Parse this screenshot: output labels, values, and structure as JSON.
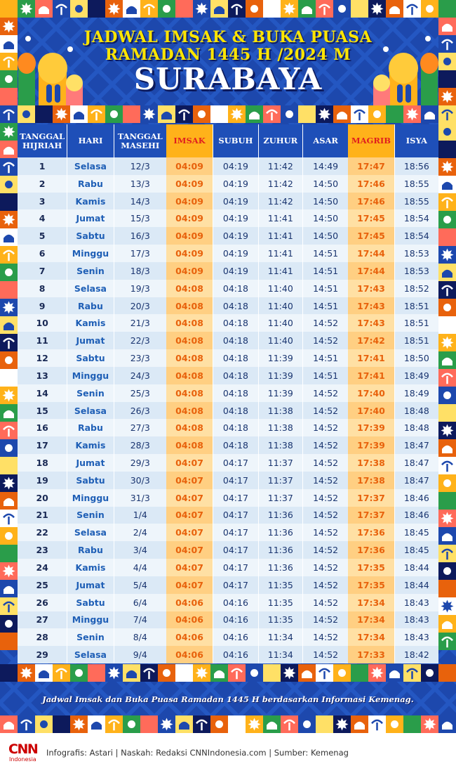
{
  "title": {
    "line1": "JADWAL IMSAK & BUKA PUASA",
    "line2": "RAMADAN 1445 H /2024 M",
    "city": "SURABAYA"
  },
  "columns": {
    "hijri": "TANGGAL HIJRIAH",
    "day": "HARI",
    "date": "TANGGAL MASEHI",
    "imsak": "IMSAK",
    "subuh": "SUBUH",
    "zuhur": "ZUHUR",
    "asar": "ASAR",
    "magrib": "MAGRIB",
    "isya": "ISYA"
  },
  "rows": [
    {
      "hijri": "1",
      "day": "Selasa",
      "date": "12/3",
      "imsak": "04:09",
      "subuh": "04:19",
      "zuhur": "11:42",
      "asar": "14:49",
      "magrib": "17:47",
      "isya": "18:56"
    },
    {
      "hijri": "2",
      "day": "Rabu",
      "date": "13/3",
      "imsak": "04:09",
      "subuh": "04:19",
      "zuhur": "11:42",
      "asar": "14:50",
      "magrib": "17:46",
      "isya": "18:55"
    },
    {
      "hijri": "3",
      "day": "Kamis",
      "date": "14/3",
      "imsak": "04:09",
      "subuh": "04:19",
      "zuhur": "11:42",
      "asar": "14:50",
      "magrib": "17:46",
      "isya": "18:55"
    },
    {
      "hijri": "4",
      "day": "Jumat",
      "date": "15/3",
      "imsak": "04:09",
      "subuh": "04:19",
      "zuhur": "11:41",
      "asar": "14:50",
      "magrib": "17:45",
      "isya": "18:54"
    },
    {
      "hijri": "5",
      "day": "Sabtu",
      "date": "16/3",
      "imsak": "04:09",
      "subuh": "04:19",
      "zuhur": "11:41",
      "asar": "14:50",
      "magrib": "17:45",
      "isya": "18:54"
    },
    {
      "hijri": "6",
      "day": "Minggu",
      "date": "17/3",
      "imsak": "04:09",
      "subuh": "04:19",
      "zuhur": "11:41",
      "asar": "14:51",
      "magrib": "17:44",
      "isya": "18:53"
    },
    {
      "hijri": "7",
      "day": "Senin",
      "date": "18/3",
      "imsak": "04:09",
      "subuh": "04:19",
      "zuhur": "11:41",
      "asar": "14:51",
      "magrib": "17:44",
      "isya": "18:53"
    },
    {
      "hijri": "8",
      "day": "Selasa",
      "date": "19/3",
      "imsak": "04:08",
      "subuh": "04:18",
      "zuhur": "11:40",
      "asar": "14:51",
      "magrib": "17:43",
      "isya": "18:52"
    },
    {
      "hijri": "9",
      "day": "Rabu",
      "date": "20/3",
      "imsak": "04:08",
      "subuh": "04:18",
      "zuhur": "11:40",
      "asar": "14:51",
      "magrib": "17:43",
      "isya": "18:51"
    },
    {
      "hijri": "10",
      "day": "Kamis",
      "date": "21/3",
      "imsak": "04:08",
      "subuh": "04:18",
      "zuhur": "11:40",
      "asar": "14:52",
      "magrib": "17:43",
      "isya": "18:51"
    },
    {
      "hijri": "11",
      "day": "Jumat",
      "date": "22/3",
      "imsak": "04:08",
      "subuh": "04:18",
      "zuhur": "11:40",
      "asar": "14:52",
      "magrib": "17:42",
      "isya": "18:51"
    },
    {
      "hijri": "12",
      "day": "Sabtu",
      "date": "23/3",
      "imsak": "04:08",
      "subuh": "04:18",
      "zuhur": "11:39",
      "asar": "14:51",
      "magrib": "17:41",
      "isya": "18:50"
    },
    {
      "hijri": "13",
      "day": "Minggu",
      "date": "24/3",
      "imsak": "04:08",
      "subuh": "04:18",
      "zuhur": "11:39",
      "asar": "14:51",
      "magrib": "17:41",
      "isya": "18:49"
    },
    {
      "hijri": "14",
      "day": "Senin",
      "date": "25/3",
      "imsak": "04:08",
      "subuh": "04:18",
      "zuhur": "11:39",
      "asar": "14:52",
      "magrib": "17:40",
      "isya": "18:49"
    },
    {
      "hijri": "15",
      "day": "Selasa",
      "date": "26/3",
      "imsak": "04:08",
      "subuh": "04:18",
      "zuhur": "11:38",
      "asar": "14:52",
      "magrib": "17:40",
      "isya": "18:48"
    },
    {
      "hijri": "16",
      "day": "Rabu",
      "date": "27/3",
      "imsak": "04:08",
      "subuh": "04:18",
      "zuhur": "11:38",
      "asar": "14:52",
      "magrib": "17:39",
      "isya": "18:48"
    },
    {
      "hijri": "17",
      "day": "Kamis",
      "date": "28/3",
      "imsak": "04:08",
      "subuh": "04:18",
      "zuhur": "11:38",
      "asar": "14:52",
      "magrib": "17:39",
      "isya": "18:47"
    },
    {
      "hijri": "18",
      "day": "Jumat",
      "date": "29/3",
      "imsak": "04:07",
      "subuh": "04:17",
      "zuhur": "11:37",
      "asar": "14:52",
      "magrib": "17:38",
      "isya": "18:47"
    },
    {
      "hijri": "19",
      "day": "Sabtu",
      "date": "30/3",
      "imsak": "04:07",
      "subuh": "04:17",
      "zuhur": "11:37",
      "asar": "14:52",
      "magrib": "17:38",
      "isya": "18:47"
    },
    {
      "hijri": "20",
      "day": "Minggu",
      "date": "31/3",
      "imsak": "04:07",
      "subuh": "04:17",
      "zuhur": "11:37",
      "asar": "14:52",
      "magrib": "17:37",
      "isya": "18:46"
    },
    {
      "hijri": "21",
      "day": "Senin",
      "date": "1/4",
      "imsak": "04:07",
      "subuh": "04:17",
      "zuhur": "11:36",
      "asar": "14:52",
      "magrib": "17:37",
      "isya": "18:46"
    },
    {
      "hijri": "22",
      "day": "Selasa",
      "date": "2/4",
      "imsak": "04:07",
      "subuh": "04:17",
      "zuhur": "11:36",
      "asar": "14:52",
      "magrib": "17:36",
      "isya": "18:45"
    },
    {
      "hijri": "23",
      "day": "Rabu",
      "date": "3/4",
      "imsak": "04:07",
      "subuh": "04:17",
      "zuhur": "11:36",
      "asar": "14:52",
      "magrib": "17:36",
      "isya": "18:45"
    },
    {
      "hijri": "24",
      "day": "Kamis",
      "date": "4/4",
      "imsak": "04:07",
      "subuh": "04:17",
      "zuhur": "11:36",
      "asar": "14:52",
      "magrib": "17:35",
      "isya": "18:44"
    },
    {
      "hijri": "25",
      "day": "Jumat",
      "date": "5/4",
      "imsak": "04:07",
      "subuh": "04:17",
      "zuhur": "11:35",
      "asar": "14:52",
      "magrib": "17:35",
      "isya": "18:44"
    },
    {
      "hijri": "26",
      "day": "Sabtu",
      "date": "6/4",
      "imsak": "04:06",
      "subuh": "04:16",
      "zuhur": "11:35",
      "asar": "14:52",
      "magrib": "17:34",
      "isya": "18:43"
    },
    {
      "hijri": "27",
      "day": "Minggu",
      "date": "7/4",
      "imsak": "04:06",
      "subuh": "04:16",
      "zuhur": "11:35",
      "asar": "14:52",
      "magrib": "17:34",
      "isya": "18:43"
    },
    {
      "hijri": "28",
      "day": "Senin",
      "date": "8/4",
      "imsak": "04:06",
      "subuh": "04:16",
      "zuhur": "11:34",
      "asar": "14:52",
      "magrib": "17:34",
      "isya": "18:43"
    },
    {
      "hijri": "29",
      "day": "Selasa",
      "date": "9/4",
      "imsak": "04:06",
      "subuh": "04:16",
      "zuhur": "11:34",
      "asar": "14:52",
      "magrib": "17:33",
      "isya": "18:42"
    }
  ],
  "note": "Jadwal Imsak dan Buka Puasa Ramadan 1445 H berdasarkan Informasi Kemenag.",
  "footer": {
    "logo_main": "CNN",
    "logo_sub": "Indonesia",
    "credits": "Infografis: Astari | Naskah: Redaksi CNNIndonesia.com | Sumber: Kemenag"
  },
  "colors": {
    "background": "#1b45a8",
    "title": "#ffe500",
    "header": "#1e4fb8",
    "highlight_header": "#ffb21a",
    "highlight_text": "#e8620c",
    "row_light": "#eef5fb",
    "row_dark": "#dbe9f6"
  },
  "decoration_icons": [
    "mosque-icon",
    "crescent-icon",
    "star-icon",
    "palm-icon",
    "lantern-icon"
  ]
}
